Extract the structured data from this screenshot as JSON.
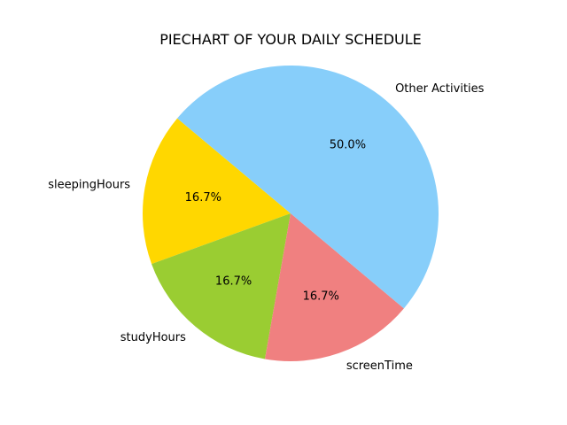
{
  "chart_data": {
    "type": "pie",
    "title": "PIECHART OF YOUR DAILY SCHEDULE",
    "categories": [
      "sleepingHours",
      "studyHours",
      "screenTime",
      "Other Activities"
    ],
    "values": [
      4,
      4,
      4,
      12
    ],
    "percent_labels": [
      "16.7%",
      "16.7%",
      "16.7%",
      "50.0%"
    ],
    "colors": [
      "#FFD700",
      "#9ACD32",
      "#F08080",
      "#87CEFA"
    ],
    "start_angle_deg": 140,
    "direction": "counterclockwise"
  }
}
